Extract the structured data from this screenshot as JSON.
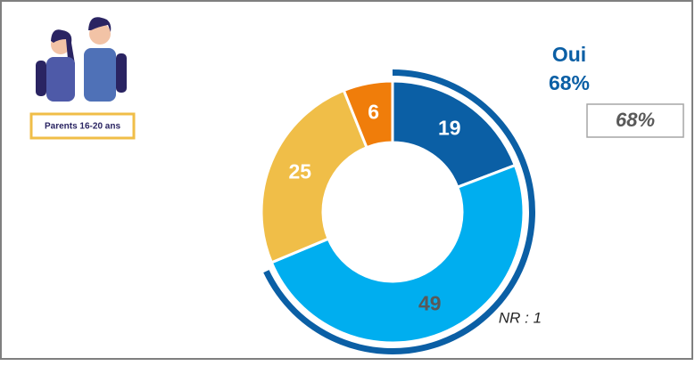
{
  "image_caption": "Parents 16-20 ans",
  "chart_data": {
    "type": "donut",
    "values": [
      19,
      49,
      25,
      6
    ],
    "colors": [
      "#0b5fa5",
      "#00aeef",
      "#f0be48",
      "#f07d0a"
    ],
    "label_colors": [
      "#ffffff",
      "#595959",
      "#ffffff",
      "#ffffff"
    ],
    "highlight": {
      "name": "Oui",
      "value": 68,
      "label": "68%",
      "color": "#0b5fa5"
    },
    "note": "68%",
    "nr_label": "NR : 1"
  }
}
